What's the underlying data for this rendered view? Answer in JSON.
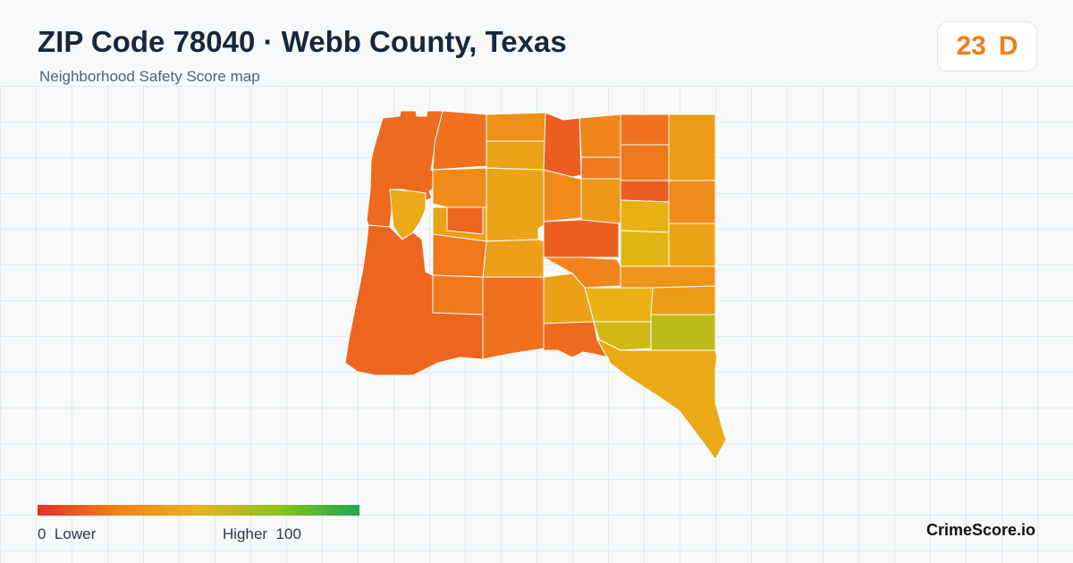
{
  "header": {
    "title": "ZIP Code 78040 · Webb County, Texas",
    "subtitle": "Neighborhood Safety Score map"
  },
  "score_badge": {
    "score": "23",
    "grade": "D",
    "color": "#f07c1a"
  },
  "legend": {
    "min_value": "0",
    "min_label": "Lower",
    "max_label": "Higher",
    "max_value": "100",
    "colors": [
      "#e53224",
      "#f2811c",
      "#e8b513",
      "#8cc21b",
      "#1aa94e"
    ]
  },
  "brand": "CrimeScore.io",
  "map": {
    "tract_scores": [
      18,
      20,
      32,
      42,
      30,
      42,
      14,
      28,
      22,
      20,
      38,
      22,
      30,
      14,
      30,
      36,
      48,
      42,
      52,
      40,
      16,
      14,
      44,
      40,
      22,
      34,
      26,
      22,
      48,
      38,
      16,
      20,
      40,
      56,
      62,
      44,
      18
    ]
  }
}
